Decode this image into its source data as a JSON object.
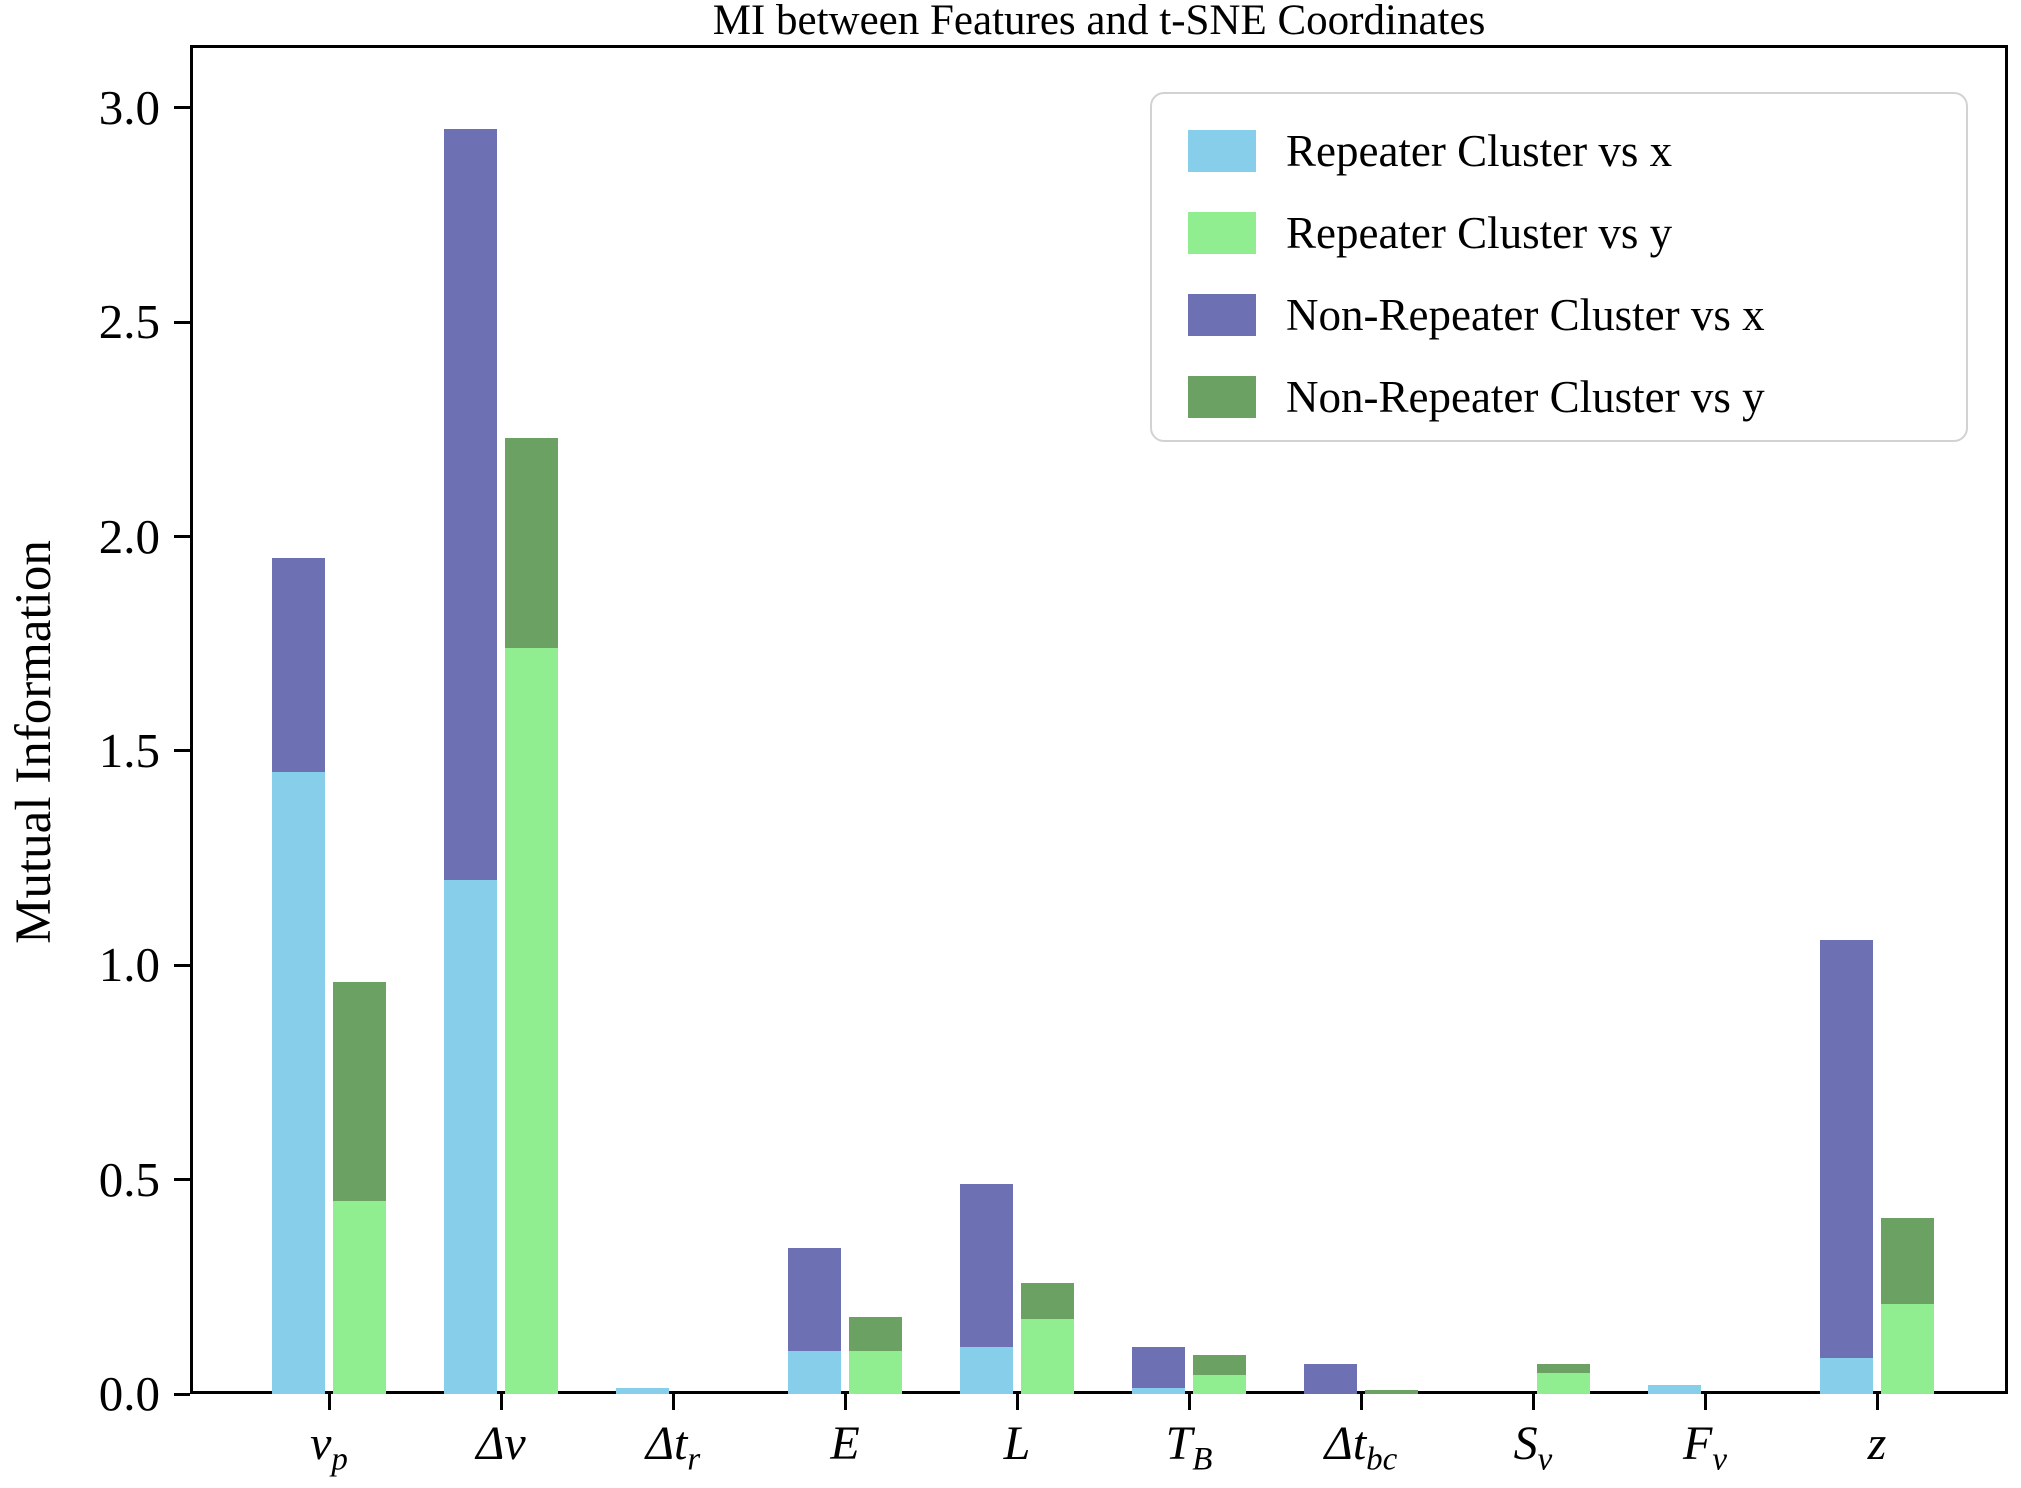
{
  "chart_data": {
    "type": "bar",
    "stacked": true,
    "title": "MI between Features and t-SNE Coordinates",
    "xlabel": "",
    "ylabel": "Mutual Information",
    "ylim": [
      0,
      3.15
    ],
    "grid": false,
    "legend_position": "upper right",
    "yticks": [
      "0.0",
      "0.5",
      "1.0",
      "1.5",
      "2.0",
      "2.5",
      "3.0"
    ],
    "categories": [
      "ν_p",
      "Δν",
      "Δt_r",
      "E",
      "L",
      "T_B",
      "Δt_bc",
      "S_ν",
      "F_ν",
      "z"
    ],
    "categories_rich": [
      {
        "text": "ν",
        "sub": "p"
      },
      {
        "text": "Δν",
        "sub": ""
      },
      {
        "text": "Δt",
        "sub": "r"
      },
      {
        "text": "E",
        "sub": ""
      },
      {
        "text": "L",
        "sub": ""
      },
      {
        "text": "T",
        "sub": "B"
      },
      {
        "text": "Δt",
        "sub": "bc"
      },
      {
        "text": "S",
        "sub": "ν"
      },
      {
        "text": "F",
        "sub": "ν"
      },
      {
        "text": "z",
        "sub": ""
      }
    ],
    "stacking_note": "Each feature has two stacked bars: the 'vs x' bar (Repeater segment on bottom, Non-Repeater segment on top) and the 'vs y' bar (Repeater segment on bottom, Non-Repeater segment on top). Values below are segment heights in MI units.",
    "series": [
      {
        "name": "Repeater Cluster vs x",
        "color": "#87CEEB",
        "bar": "x",
        "position": "bottom",
        "values": [
          1.45,
          1.2,
          0.015,
          0.1,
          0.11,
          0.015,
          0.0,
          0.0,
          0.02,
          0.085
        ]
      },
      {
        "name": "Repeater Cluster vs y",
        "color": "#90EE90",
        "bar": "y",
        "position": "bottom",
        "values": [
          0.45,
          1.74,
          0.0,
          0.1,
          0.175,
          0.045,
          0.0,
          0.05,
          0.0,
          0.21
        ]
      },
      {
        "name": "Non-Repeater Cluster vs x",
        "color": "#6D71B4",
        "bar": "x",
        "position": "top",
        "values": [
          0.5,
          1.75,
          0.0,
          0.24,
          0.38,
          0.095,
          0.07,
          0.0,
          0.0,
          0.975
        ]
      },
      {
        "name": "Non-Repeater Cluster vs y",
        "color": "#6CA164",
        "bar": "y",
        "position": "top",
        "values": [
          0.51,
          0.49,
          0.0,
          0.08,
          0.085,
          0.045,
          0.01,
          0.02,
          0.0,
          0.2
        ]
      }
    ],
    "bar_totals_vs_x": [
      1.95,
      2.95,
      0.015,
      0.34,
      0.49,
      0.11,
      0.07,
      0.0,
      0.02,
      1.06
    ],
    "bar_totals_vs_y": [
      0.96,
      2.23,
      0.0,
      0.18,
      0.26,
      0.09,
      0.01,
      0.07,
      0.0,
      0.41
    ],
    "axis_color": "#000000"
  }
}
